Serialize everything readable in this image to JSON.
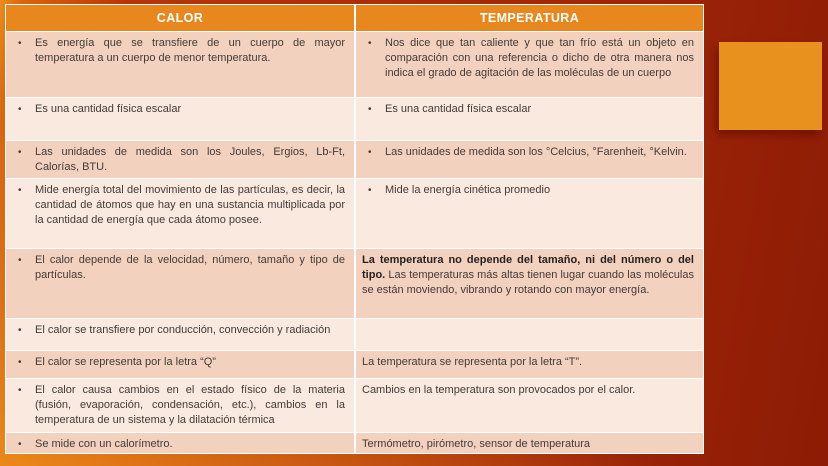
{
  "colors": {
    "header_bg": "#E8871E",
    "header_text": "#FFFFFF",
    "row_dark": "#F3D1BF",
    "row_light": "#FAE9DF",
    "text": "#423B36",
    "accent": "#E8911F",
    "bg_orange": "#ED8C1A",
    "bg_dark_red": "#8D1B05"
  },
  "ui": {
    "bullet": "•"
  },
  "table": {
    "headers": {
      "left": "CALOR",
      "right": "TEMPERATURA"
    },
    "rows": [
      {
        "left": {
          "bullet": true,
          "text": "Es energía que se transfiere de un cuerpo de mayor temperatura a un cuerpo de menor temperatura."
        },
        "right": {
          "bullet": true,
          "text": "Nos dice que tan caliente y que tan frío está un objeto en comparación con una referencia o dicho de otra manera nos indica el grado de agitación de las moléculas de un cuerpo"
        }
      },
      {
        "left": {
          "bullet": true,
          "text": "Es una cantidad física escalar"
        },
        "right": {
          "bullet": true,
          "text": "Es una cantidad física escalar"
        }
      },
      {
        "left": {
          "bullet": true,
          "text": "Las unidades de medida son los Joules, Ergios, Lb-Ft, Calorías, BTU."
        },
        "right": {
          "bullet": true,
          "text": "Las unidades de medida son los °Celcius, °Farenheit, °Kelvin."
        }
      },
      {
        "left": {
          "bullet": true,
          "text": "Mide energía total del movimiento de las partículas, es decir, la cantidad de átomos que hay en una sustancia multiplicada por la cantidad de energía que cada átomo posee."
        },
        "right": {
          "bullet": true,
          "text": "Mide la energía cinética promedio"
        }
      },
      {
        "left": {
          "bullet": true,
          "text": "El calor depende de la velocidad, número, tamaño y tipo de partículas."
        },
        "right": {
          "bullet": false,
          "bold_text": "La temperatura no depende del tamaño, ni del número o del tipo.",
          "text": "Las temperaturas más altas tienen lugar cuando las moléculas se están moviendo, vibrando y rotando con mayor energía."
        }
      },
      {
        "left": {
          "bullet": true,
          "text": "El calor se transfiere por conducción, convección y radiación"
        },
        "right": {
          "bullet": false,
          "text": ""
        }
      },
      {
        "left": {
          "bullet": true,
          "text": "El calor se representa por la letra “Q”"
        },
        "right": {
          "bullet": false,
          "text": "La temperatura se representa por la letra “T”."
        }
      },
      {
        "left": {
          "bullet": true,
          "text": "El calor causa cambios en el estado físico de la materia (fusión, evaporación, condensación, etc.), cambios en la temperatura de un sistema y la dilatación térmica"
        },
        "right": {
          "bullet": false,
          "text": "Cambios en la temperatura son provocados por el calor."
        }
      },
      {
        "left": {
          "bullet": true,
          "text": "Se mide con un calorímetro."
        },
        "right": {
          "bullet": false,
          "text": "Termómetro, pirómetro, sensor de temperatura"
        }
      }
    ]
  }
}
